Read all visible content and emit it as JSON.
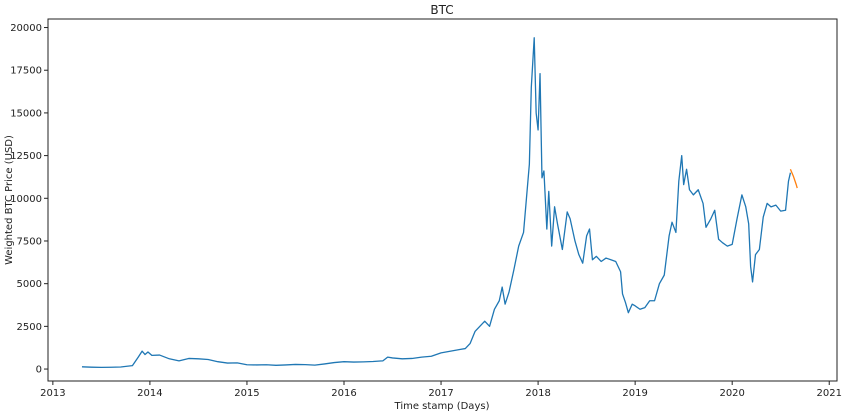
{
  "chart_data": {
    "type": "line",
    "title": "BTC",
    "xlabel": "Time stamp (Days)",
    "ylabel": "Weighted BTC Price (USD)",
    "xlim": [
      2012.95,
      2021.08
    ],
    "ylim": [
      -700,
      20500
    ],
    "x_ticks": [
      2013,
      2014,
      2015,
      2016,
      2017,
      2018,
      2019,
      2020,
      2021
    ],
    "x_tick_labels": [
      "2013",
      "2014",
      "2015",
      "2016",
      "2017",
      "2018",
      "2019",
      "2020",
      "2021"
    ],
    "y_ticks": [
      0,
      2500,
      5000,
      7500,
      10000,
      12500,
      15000,
      17500,
      20000
    ],
    "y_tick_labels": [
      "0",
      "2500",
      "5000",
      "7500",
      "10000",
      "12500",
      "15000",
      "17500",
      "20000"
    ],
    "grid": false,
    "series": [
      {
        "color": "#1f77b4",
        "points": [
          [
            2013.3,
            130
          ],
          [
            2013.4,
            110
          ],
          [
            2013.5,
            100
          ],
          [
            2013.6,
            105
          ],
          [
            2013.7,
            120
          ],
          [
            2013.82,
            200
          ],
          [
            2013.88,
            700
          ],
          [
            2013.92,
            1050
          ],
          [
            2013.95,
            850
          ],
          [
            2013.98,
            1000
          ],
          [
            2014.02,
            800
          ],
          [
            2014.1,
            820
          ],
          [
            2014.2,
            600
          ],
          [
            2014.3,
            480
          ],
          [
            2014.4,
            620
          ],
          [
            2014.5,
            600
          ],
          [
            2014.6,
            560
          ],
          [
            2014.7,
            430
          ],
          [
            2014.8,
            350
          ],
          [
            2014.9,
            360
          ],
          [
            2015.0,
            250
          ],
          [
            2015.1,
            240
          ],
          [
            2015.2,
            250
          ],
          [
            2015.3,
            220
          ],
          [
            2015.4,
            240
          ],
          [
            2015.5,
            270
          ],
          [
            2015.6,
            260
          ],
          [
            2015.7,
            230
          ],
          [
            2015.8,
            300
          ],
          [
            2015.9,
            380
          ],
          [
            2016.0,
            430
          ],
          [
            2016.1,
            410
          ],
          [
            2016.2,
            420
          ],
          [
            2016.3,
            440
          ],
          [
            2016.4,
            480
          ],
          [
            2016.45,
            700
          ],
          [
            2016.5,
            650
          ],
          [
            2016.6,
            600
          ],
          [
            2016.7,
            620
          ],
          [
            2016.8,
            700
          ],
          [
            2016.9,
            750
          ],
          [
            2017.0,
            950
          ],
          [
            2017.1,
            1050
          ],
          [
            2017.2,
            1150
          ],
          [
            2017.25,
            1200
          ],
          [
            2017.3,
            1500
          ],
          [
            2017.35,
            2200
          ],
          [
            2017.4,
            2500
          ],
          [
            2017.45,
            2800
          ],
          [
            2017.5,
            2500
          ],
          [
            2017.55,
            3500
          ],
          [
            2017.6,
            4000
          ],
          [
            2017.63,
            4800
          ],
          [
            2017.66,
            3800
          ],
          [
            2017.7,
            4500
          ],
          [
            2017.75,
            5800
          ],
          [
            2017.8,
            7200
          ],
          [
            2017.85,
            8000
          ],
          [
            2017.88,
            10000
          ],
          [
            2017.91,
            12000
          ],
          [
            2017.93,
            16500
          ],
          [
            2017.96,
            19400
          ],
          [
            2017.98,
            15000
          ],
          [
            2018.0,
            14000
          ],
          [
            2018.02,
            17300
          ],
          [
            2018.04,
            11200
          ],
          [
            2018.06,
            11600
          ],
          [
            2018.09,
            8200
          ],
          [
            2018.11,
            10400
          ],
          [
            2018.14,
            7200
          ],
          [
            2018.17,
            9500
          ],
          [
            2018.2,
            8500
          ],
          [
            2018.25,
            7000
          ],
          [
            2018.3,
            9200
          ],
          [
            2018.33,
            8800
          ],
          [
            2018.38,
            7500
          ],
          [
            2018.42,
            6700
          ],
          [
            2018.46,
            6200
          ],
          [
            2018.5,
            7800
          ],
          [
            2018.53,
            8200
          ],
          [
            2018.56,
            6400
          ],
          [
            2018.6,
            6600
          ],
          [
            2018.65,
            6300
          ],
          [
            2018.7,
            6500
          ],
          [
            2018.75,
            6400
          ],
          [
            2018.8,
            6300
          ],
          [
            2018.85,
            5700
          ],
          [
            2018.87,
            4400
          ],
          [
            2018.9,
            3900
          ],
          [
            2018.93,
            3300
          ],
          [
            2018.97,
            3800
          ],
          [
            2019.0,
            3700
          ],
          [
            2019.05,
            3500
          ],
          [
            2019.1,
            3600
          ],
          [
            2019.15,
            4000
          ],
          [
            2019.2,
            4000
          ],
          [
            2019.25,
            5000
          ],
          [
            2019.3,
            5500
          ],
          [
            2019.35,
            7800
          ],
          [
            2019.38,
            8600
          ],
          [
            2019.42,
            8000
          ],
          [
            2019.45,
            11000
          ],
          [
            2019.48,
            12500
          ],
          [
            2019.5,
            10800
          ],
          [
            2019.53,
            11700
          ],
          [
            2019.56,
            10500
          ],
          [
            2019.6,
            10200
          ],
          [
            2019.65,
            10500
          ],
          [
            2019.7,
            9700
          ],
          [
            2019.73,
            8300
          ],
          [
            2019.78,
            8800
          ],
          [
            2019.82,
            9300
          ],
          [
            2019.86,
            7600
          ],
          [
            2019.9,
            7400
          ],
          [
            2019.95,
            7200
          ],
          [
            2020.0,
            7300
          ],
          [
            2020.05,
            8800
          ],
          [
            2020.1,
            10200
          ],
          [
            2020.14,
            9500
          ],
          [
            2020.17,
            8500
          ],
          [
            2020.19,
            6000
          ],
          [
            2020.21,
            5100
          ],
          [
            2020.24,
            6700
          ],
          [
            2020.28,
            7000
          ],
          [
            2020.32,
            8900
          ],
          [
            2020.36,
            9700
          ],
          [
            2020.4,
            9500
          ],
          [
            2020.45,
            9600
          ],
          [
            2020.5,
            9250
          ],
          [
            2020.55,
            9300
          ],
          [
            2020.58,
            11000
          ],
          [
            2020.6,
            11500
          ]
        ]
      },
      {
        "color": "#ff7f0e",
        "points": [
          [
            2020.6,
            11700
          ],
          [
            2020.63,
            11300
          ],
          [
            2020.66,
            10800
          ],
          [
            2020.67,
            10600
          ]
        ]
      }
    ]
  }
}
